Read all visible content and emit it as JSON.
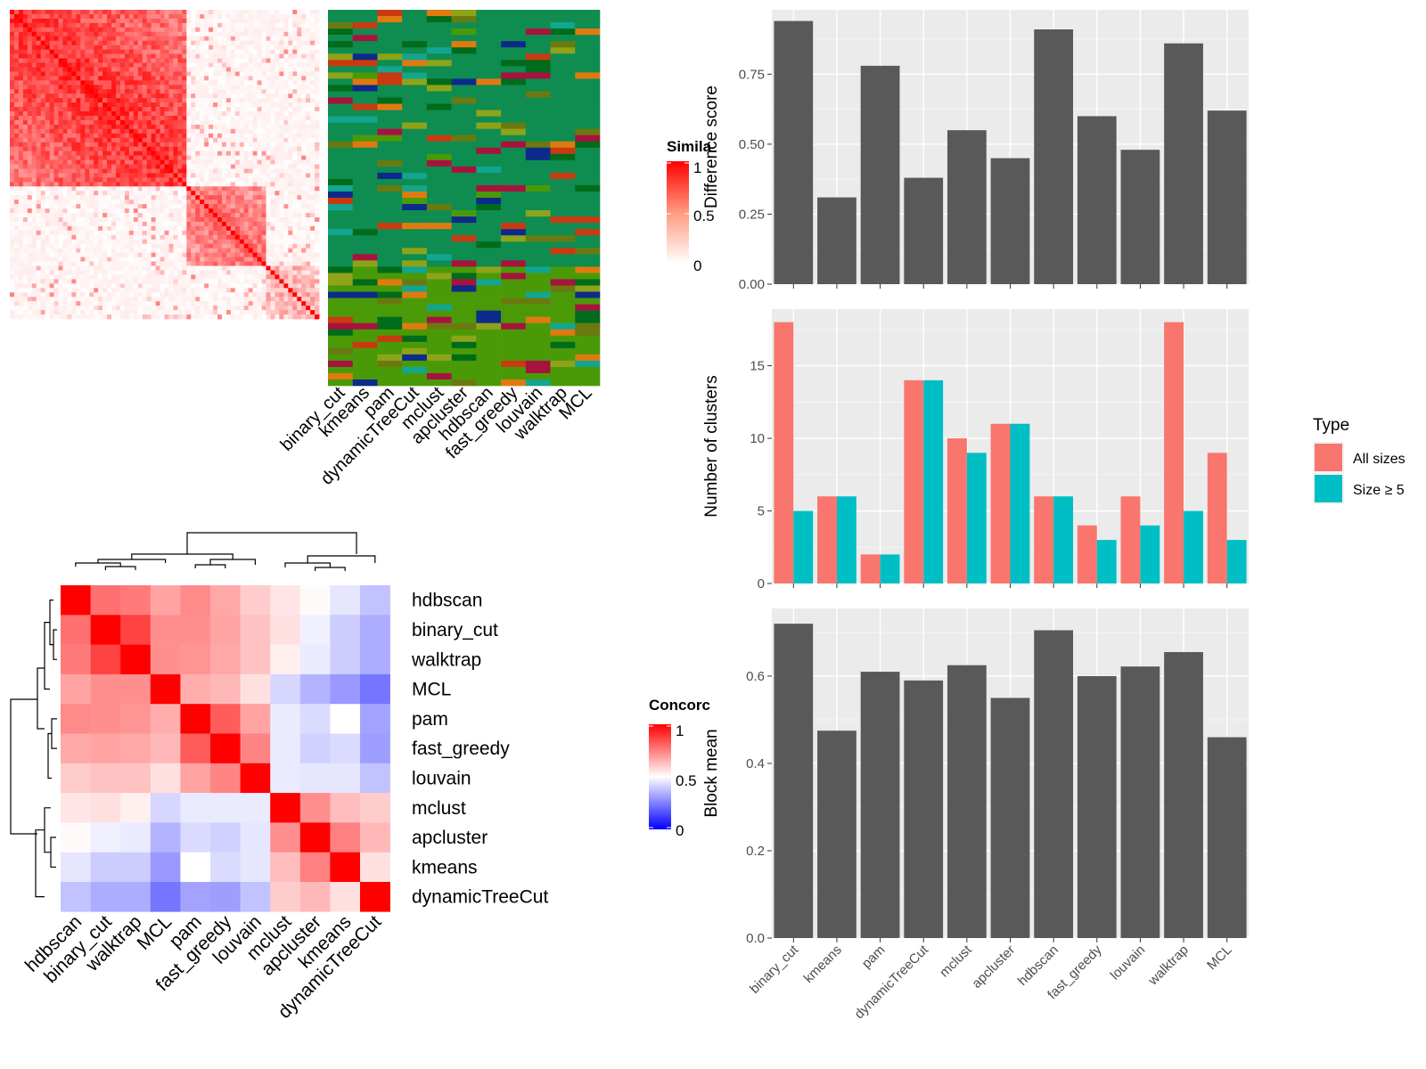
{
  "chart_data": [
    {
      "id": "similarity_heatmap",
      "type": "heatmap",
      "legend_title": "Simila",
      "legend_ticks": [
        "1",
        "0.5",
        "0"
      ],
      "legend_range": [
        0,
        1
      ],
      "colors": {
        "high": "#ff0000",
        "low": "#ffffff"
      },
      "block_structure": [
        {
          "range": [
            0.0,
            0.57
          ],
          "mean": 0.8
        },
        {
          "range": [
            0.57,
            0.82
          ],
          "mean": 0.55
        },
        {
          "range": [
            0.82,
            1.0
          ],
          "mean": 0.3
        }
      ]
    },
    {
      "id": "class_label_panel",
      "type": "heatmap",
      "columns": [
        "binary_cut",
        "kmeans",
        "pam",
        "dynamicTreeCut",
        "mclust",
        "apcluster",
        "hdbscan",
        "fast_greedy",
        "louvain",
        "walktrap",
        "MCL"
      ]
    },
    {
      "id": "concordance_heatmap",
      "type": "heatmap",
      "legend_title": "Concorc",
      "legend_ticks": [
        "1",
        "0.5",
        "0"
      ],
      "legend_range": [
        0,
        1
      ],
      "colors": {
        "high": "#ff0000",
        "mid": "#ffffff",
        "low": "#0000ff"
      },
      "row_labels": [
        "hdbscan",
        "binary_cut",
        "walktrap",
        "MCL",
        "pam",
        "fast_greedy",
        "louvain",
        "mclust",
        "apcluster",
        "kmeans",
        "dynamicTreeCut"
      ],
      "col_labels": [
        "hdbscan",
        "binary_cut",
        "walktrap",
        "MCL",
        "pam",
        "fast_greedy",
        "louvain",
        "mclust",
        "apcluster",
        "kmeans",
        "dynamicTreeCut"
      ],
      "values": [
        [
          1.0,
          0.78,
          0.76,
          0.68,
          0.73,
          0.67,
          0.6,
          0.55,
          0.51,
          0.45,
          0.38
        ],
        [
          0.78,
          1.0,
          0.87,
          0.72,
          0.72,
          0.68,
          0.62,
          0.56,
          0.47,
          0.4,
          0.34
        ],
        [
          0.76,
          0.87,
          1.0,
          0.72,
          0.71,
          0.67,
          0.62,
          0.53,
          0.46,
          0.4,
          0.34
        ],
        [
          0.68,
          0.72,
          0.72,
          1.0,
          0.66,
          0.64,
          0.56,
          0.42,
          0.35,
          0.3,
          0.23
        ],
        [
          0.73,
          0.72,
          0.71,
          0.66,
          1.0,
          0.82,
          0.68,
          0.46,
          0.43,
          0.5,
          0.32
        ],
        [
          0.67,
          0.68,
          0.67,
          0.64,
          0.82,
          1.0,
          0.74,
          0.46,
          0.41,
          0.43,
          0.31
        ],
        [
          0.6,
          0.62,
          0.62,
          0.56,
          0.68,
          0.74,
          1.0,
          0.46,
          0.45,
          0.45,
          0.38
        ],
        [
          0.55,
          0.56,
          0.53,
          0.42,
          0.46,
          0.46,
          0.46,
          1.0,
          0.72,
          0.63,
          0.6
        ],
        [
          0.51,
          0.47,
          0.46,
          0.35,
          0.43,
          0.41,
          0.45,
          0.72,
          1.0,
          0.75,
          0.64
        ],
        [
          0.45,
          0.4,
          0.4,
          0.3,
          0.5,
          0.43,
          0.45,
          0.63,
          0.75,
          1.0,
          0.56
        ],
        [
          0.38,
          0.34,
          0.34,
          0.23,
          0.32,
          0.31,
          0.38,
          0.6,
          0.64,
          0.56,
          1.0
        ]
      ]
    },
    {
      "id": "difference_score",
      "type": "bar",
      "categories": [
        "binary_cut",
        "kmeans",
        "pam",
        "dynamicTreeCut",
        "mclust",
        "apcluster",
        "hdbscan",
        "fast_greedy",
        "louvain",
        "walktrap",
        "MCL"
      ],
      "values": [
        0.94,
        0.31,
        0.78,
        0.38,
        0.55,
        0.45,
        0.91,
        0.6,
        0.48,
        0.86,
        0.62
      ],
      "ylabel": "Difference score",
      "ylim": [
        0,
        0.98
      ],
      "yticks": [
        "0.00",
        "0.25",
        "0.50",
        "0.75"
      ],
      "bar_color": "#595959",
      "grid": true
    },
    {
      "id": "number_of_clusters",
      "type": "bar",
      "categories": [
        "binary_cut",
        "kmeans",
        "pam",
        "dynamicTreeCut",
        "mclust",
        "apcluster",
        "hdbscan",
        "fast_greedy",
        "louvain",
        "walktrap",
        "MCL"
      ],
      "series": [
        {
          "name": "All sizes",
          "color": "#f8766d",
          "values": [
            18,
            6,
            2,
            14,
            10,
            11,
            6,
            4,
            6,
            18,
            9
          ]
        },
        {
          "name": "Size ≥ 5",
          "color": "#00bfc4",
          "values": [
            5,
            6,
            2,
            14,
            9,
            11,
            6,
            3,
            4,
            5,
            3
          ]
        }
      ],
      "ylabel": "Number of clusters",
      "ylim": [
        0,
        18.9
      ],
      "yticks": [
        "0",
        "5",
        "10",
        "15"
      ],
      "legend_title": "Type",
      "legend_position": "right",
      "grid": true
    },
    {
      "id": "block_mean",
      "type": "bar",
      "categories": [
        "binary_cut",
        "kmeans",
        "pam",
        "dynamicTreeCut",
        "mclust",
        "apcluster",
        "hdbscan",
        "fast_greedy",
        "louvain",
        "walktrap",
        "MCL"
      ],
      "values": [
        0.72,
        0.475,
        0.61,
        0.59,
        0.625,
        0.55,
        0.705,
        0.6,
        0.622,
        0.655,
        0.46
      ],
      "ylabel": "Block mean",
      "ylim": [
        0,
        0.755
      ],
      "yticks": [
        "0.0",
        "0.2",
        "0.4",
        "0.6"
      ],
      "bar_color": "#595959",
      "grid": true
    }
  ]
}
